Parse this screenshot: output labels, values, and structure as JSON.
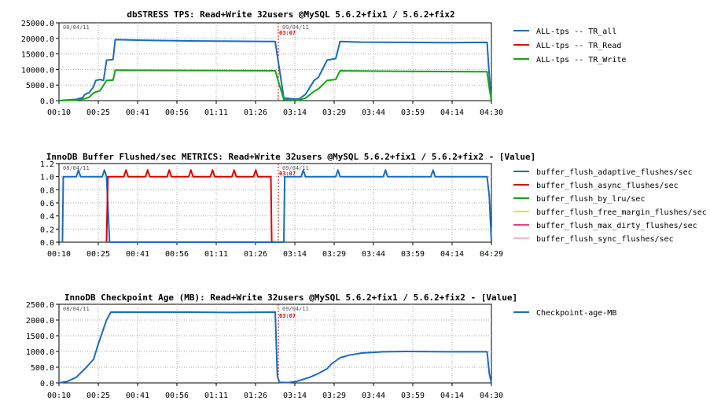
{
  "chart_data": [
    {
      "type": "line",
      "title": "dbSTRESS TPS: Read+Write 32users @MySQL 5.6.2+fix1 / 5.6.2+fix2",
      "x_ticks": [
        "00:10",
        "00:25",
        "00:41",
        "00:56",
        "01:11",
        "01:26",
        "03:14",
        "03:29",
        "03:44",
        "03:59",
        "04:14",
        "04:30"
      ],
      "ylim": [
        0,
        25000
      ],
      "y_ticks": [
        "0.0",
        "5000.0",
        "10000.0",
        "15000.0",
        "20000.0",
        "25000.0"
      ],
      "date_labels": [
        "08/04/11",
        "09/04/11"
      ],
      "split_time": "03:07",
      "grid": true,
      "legend": "right",
      "series": [
        {
          "name": "ALL-tps -- TR_all",
          "color": "#1a6bc2",
          "points": [
            [
              0,
              0
            ],
            [
              0.04,
              400
            ],
            [
              0.055,
              1000
            ],
            [
              0.06,
              2000
            ],
            [
              0.07,
              2600
            ],
            [
              0.08,
              4500
            ],
            [
              0.085,
              6500
            ],
            [
              0.095,
              6800
            ],
            [
              0.103,
              6500
            ],
            [
              0.11,
              13000
            ],
            [
              0.125,
              13200
            ],
            [
              0.13,
              19600
            ],
            [
              0.2,
              19400
            ],
            [
              0.3,
              19200
            ],
            [
              0.4,
              19100
            ],
            [
              0.48,
              19000
            ],
            [
              0.5,
              19000
            ],
            [
              0.52,
              800
            ],
            [
              0.54,
              600
            ],
            [
              0.555,
              500
            ],
            [
              0.56,
              1000
            ],
            [
              0.57,
              2000
            ],
            [
              0.59,
              6500
            ],
            [
              0.6,
              7500
            ],
            [
              0.62,
              13000
            ],
            [
              0.64,
              13500
            ],
            [
              0.65,
              19000
            ],
            [
              0.7,
              18800
            ],
            [
              0.8,
              18700
            ],
            [
              0.9,
              18600
            ],
            [
              0.99,
              18700
            ],
            [
              0.995,
              8000
            ],
            [
              1,
              0
            ]
          ]
        },
        {
          "name": "ALL-tps -- TR_Read",
          "color": "#e00000",
          "points": []
        },
        {
          "name": "ALL-tps -- TR_Write",
          "color": "#10a810",
          "points": [
            [
              0,
              0
            ],
            [
              0.04,
              200
            ],
            [
              0.06,
              600
            ],
            [
              0.07,
              1100
            ],
            [
              0.08,
              2500
            ],
            [
              0.095,
              3200
            ],
            [
              0.11,
              6500
            ],
            [
              0.125,
              6600
            ],
            [
              0.13,
              9800
            ],
            [
              0.3,
              9700
            ],
            [
              0.5,
              9600
            ],
            [
              0.52,
              300
            ],
            [
              0.555,
              200
            ],
            [
              0.57,
              800
            ],
            [
              0.59,
              3000
            ],
            [
              0.6,
              3800
            ],
            [
              0.62,
              6500
            ],
            [
              0.64,
              6800
            ],
            [
              0.65,
              9600
            ],
            [
              0.8,
              9400
            ],
            [
              0.99,
              9300
            ],
            [
              0.995,
              4000
            ],
            [
              1,
              0
            ]
          ]
        }
      ]
    },
    {
      "type": "line",
      "title": "InnoDB Buffer Flushed/sec METRICS: Read+Write 32users @MySQL 5.6.2+fix1 / 5.6.2+fix2 - [Value]",
      "x_ticks": [
        "00:10",
        "00:25",
        "00:41",
        "00:56",
        "01:11",
        "01:26",
        "03:14",
        "03:29",
        "03:44",
        "03:59",
        "04:14",
        "04:29"
      ],
      "ylim": [
        0,
        1.2
      ],
      "y_ticks": [
        "0.0",
        "0.2",
        "0.4",
        "0.6",
        "0.8",
        "1.0",
        "1.2"
      ],
      "date_labels": [
        "08/04/11",
        "09/04/11"
      ],
      "split_time": "03:07",
      "grid": true,
      "legend": "right",
      "series": [
        {
          "name": "buffer_flush_adaptive_flushes/sec",
          "color": "#1a6bc2",
          "points": [
            [
              0.008,
              0
            ],
            [
              0.01,
              1
            ],
            [
              0.04,
              1
            ],
            [
              0.045,
              1.1
            ],
            [
              0.05,
              1
            ],
            [
              0.1,
              1
            ],
            [
              0.105,
              1.1
            ],
            [
              0.11,
              1
            ],
            [
              0.11,
              1
            ],
            [
              0.117,
              0
            ],
            [
              0.117,
              0
            ],
            [
              0.515,
              0
            ],
            [
              0.52,
              0
            ],
            [
              0.522,
              1
            ],
            [
              0.56,
              1
            ],
            [
              0.565,
              1.1
            ],
            [
              0.57,
              1
            ],
            [
              0.64,
              1
            ],
            [
              0.645,
              1.1
            ],
            [
              0.65,
              1
            ],
            [
              0.75,
              1
            ],
            [
              0.755,
              1.1
            ],
            [
              0.76,
              1
            ],
            [
              0.86,
              1
            ],
            [
              0.865,
              1.1
            ],
            [
              0.87,
              1
            ],
            [
              0.99,
              1
            ],
            [
              0.995,
              0.7
            ],
            [
              1,
              0
            ]
          ]
        },
        {
          "name": "buffer_flush_async_flushes/sec",
          "color": "#e00000",
          "points": [
            [
              0.11,
              0
            ],
            [
              0.113,
              1
            ],
            [
              0.15,
              1
            ],
            [
              0.155,
              1.1
            ],
            [
              0.16,
              1
            ],
            [
              0.2,
              1
            ],
            [
              0.205,
              1.1
            ],
            [
              0.21,
              1
            ],
            [
              0.25,
              1
            ],
            [
              0.255,
              1.1
            ],
            [
              0.26,
              1
            ],
            [
              0.3,
              1
            ],
            [
              0.305,
              1.1
            ],
            [
              0.31,
              1
            ],
            [
              0.35,
              1
            ],
            [
              0.355,
              1.1
            ],
            [
              0.36,
              1
            ],
            [
              0.4,
              1
            ],
            [
              0.405,
              1.1
            ],
            [
              0.41,
              1
            ],
            [
              0.45,
              1
            ],
            [
              0.455,
              1.1
            ],
            [
              0.46,
              1
            ],
            [
              0.49,
              1
            ],
            [
              0.492,
              0
            ]
          ]
        },
        {
          "name": "buffer_flush_by_lru/sec",
          "color": "#10a810",
          "points": []
        },
        {
          "name": "buffer_flush_free_margin_flushes/sec",
          "color": "#f0e000",
          "points": []
        },
        {
          "name": "buffer_flush_max_dirty_flushes/sec",
          "color": "#e84080",
          "points": []
        },
        {
          "name": "buffer_flush_sync_flushes/sec",
          "color": "#f4b8c0",
          "points": []
        }
      ]
    },
    {
      "type": "line",
      "title": "InnoDB Checkpoint Age (MB): Read+Write 32users @MySQL 5.6.2+fix1 / 5.6.2+fix2 - [Value]",
      "x_ticks": [
        "00:10",
        "00:25",
        "00:41",
        "00:56",
        "01:11",
        "01:26",
        "03:14",
        "03:29",
        "03:44",
        "03:59",
        "04:14",
        "04:30"
      ],
      "ylim": [
        0,
        2500
      ],
      "y_ticks": [
        "0.0",
        "500.0",
        "1000.0",
        "1500.0",
        "2000.0",
        "2500.0"
      ],
      "date_labels": [
        "08/04/11",
        "09/04/11"
      ],
      "split_time": "03:07",
      "grid": true,
      "legend": "right",
      "series": [
        {
          "name": "Checkpoint-age-MB",
          "color": "#1a6bc2",
          "points": [
            [
              0,
              0
            ],
            [
              0.02,
              50
            ],
            [
              0.04,
              180
            ],
            [
              0.06,
              450
            ],
            [
              0.08,
              750
            ],
            [
              0.09,
              1200
            ],
            [
              0.1,
              1600
            ],
            [
              0.11,
              2000
            ],
            [
              0.12,
              2250
            ],
            [
              0.2,
              2250
            ],
            [
              0.3,
              2250
            ],
            [
              0.4,
              2240
            ],
            [
              0.49,
              2250
            ],
            [
              0.5,
              2250
            ],
            [
              0.505,
              200
            ],
            [
              0.51,
              20
            ],
            [
              0.53,
              10
            ],
            [
              0.55,
              50
            ],
            [
              0.58,
              180
            ],
            [
              0.6,
              300
            ],
            [
              0.62,
              450
            ],
            [
              0.63,
              600
            ],
            [
              0.65,
              800
            ],
            [
              0.67,
              880
            ],
            [
              0.7,
              950
            ],
            [
              0.75,
              990
            ],
            [
              0.8,
              1000
            ],
            [
              0.9,
              990
            ],
            [
              0.99,
              990
            ],
            [
              0.995,
              300
            ],
            [
              1,
              0
            ]
          ]
        }
      ]
    }
  ]
}
